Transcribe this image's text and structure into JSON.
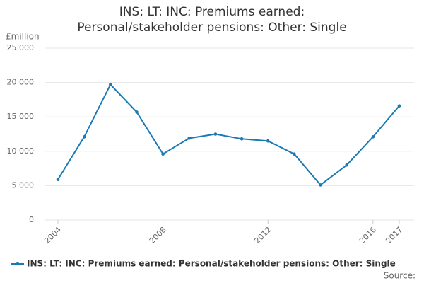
{
  "chart_data": {
    "type": "line",
    "title": "INS: LT: INC: Premiums earned: Personal/stakeholder pensions: Other: Single",
    "y_label": "£million",
    "source": "Source:",
    "x": [
      2004,
      2005,
      2006,
      2007,
      2008,
      2009,
      2010,
      2011,
      2012,
      2013,
      2014,
      2015,
      2016,
      2017
    ],
    "xlim": [
      2004,
      2017
    ],
    "xticks": [
      2004,
      2008,
      2012,
      2016,
      2017
    ],
    "series": [
      {
        "name": "INS: LT: INC: Premiums earned: Personal/stakeholder pensions: Other: Single",
        "color": "#1a7ab5",
        "values": [
          5900,
          12100,
          19700,
          15700,
          9600,
          11900,
          12500,
          11800,
          11500,
          9600,
          5100,
          8000,
          12100,
          16600
        ]
      }
    ],
    "ylim": [
      0,
      25000
    ],
    "yticks": [
      0,
      {
        "value": 5000,
        "label": "5 000"
      },
      {
        "value": 10000,
        "label": "10 000"
      },
      {
        "value": 15000,
        "label": "15 000"
      },
      {
        "value": 20000,
        "label": "20 000"
      },
      {
        "value": 25000,
        "label": "25 000"
      }
    ],
    "grid": true
  }
}
